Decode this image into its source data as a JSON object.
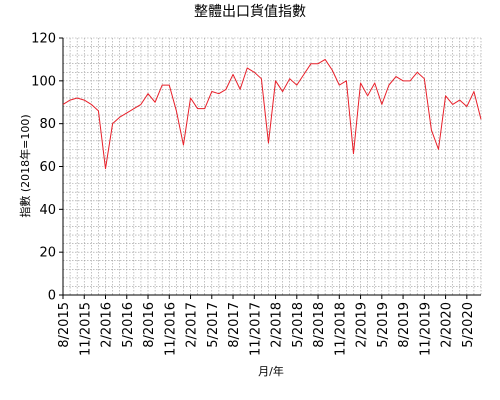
{
  "chart_data": {
    "type": "line",
    "title": "整體出口貨值指數",
    "xlabel": "月/年",
    "ylabel": "指數 (2018年=100)",
    "ylim": [
      0,
      120
    ],
    "yticks": [
      0,
      20,
      40,
      60,
      80,
      100,
      120
    ],
    "grid": true,
    "line_color": "#e8202a",
    "x_tick_labels": [
      "8/2015",
      "11/2015",
      "2/2016",
      "5/2016",
      "8/2016",
      "11/2016",
      "2/2017",
      "5/2017",
      "8/2017",
      "11/2017",
      "2/2018",
      "5/2018",
      "8/2018",
      "11/2018",
      "2/2019",
      "5/2019",
      "8/2019",
      "11/2019",
      "2/2020",
      "5/2020"
    ],
    "x": [
      "8/2015",
      "9/2015",
      "10/2015",
      "11/2015",
      "12/2015",
      "1/2016",
      "2/2016",
      "3/2016",
      "4/2016",
      "5/2016",
      "6/2016",
      "7/2016",
      "8/2016",
      "9/2016",
      "10/2016",
      "11/2016",
      "12/2016",
      "1/2017",
      "2/2017",
      "3/2017",
      "4/2017",
      "5/2017",
      "6/2017",
      "7/2017",
      "8/2017",
      "9/2017",
      "10/2017",
      "11/2017",
      "12/2017",
      "1/2018",
      "2/2018",
      "3/2018",
      "4/2018",
      "5/2018",
      "6/2018",
      "7/2018",
      "8/2018",
      "9/2018",
      "10/2018",
      "11/2018",
      "12/2018",
      "1/2019",
      "2/2019",
      "3/2019",
      "4/2019",
      "5/2019",
      "6/2019",
      "7/2019",
      "8/2019",
      "9/2019",
      "10/2019",
      "11/2019",
      "12/2019",
      "1/2020",
      "2/2020",
      "3/2020",
      "4/2020",
      "5/2020",
      "6/2020",
      "7/2020"
    ],
    "values": [
      89,
      91,
      92,
      91,
      89,
      86,
      59,
      80,
      83,
      85,
      87,
      89,
      94,
      90,
      98,
      98,
      86,
      70,
      92,
      87,
      87,
      95,
      94,
      96,
      103,
      96,
      106,
      104,
      101,
      71,
      100,
      95,
      101,
      98,
      103,
      108,
      108,
      110,
      105,
      98,
      100,
      66,
      99,
      93,
      99,
      89,
      98,
      102,
      100,
      100,
      104,
      101,
      77,
      68,
      93,
      89,
      91,
      88,
      95,
      82
    ]
  }
}
